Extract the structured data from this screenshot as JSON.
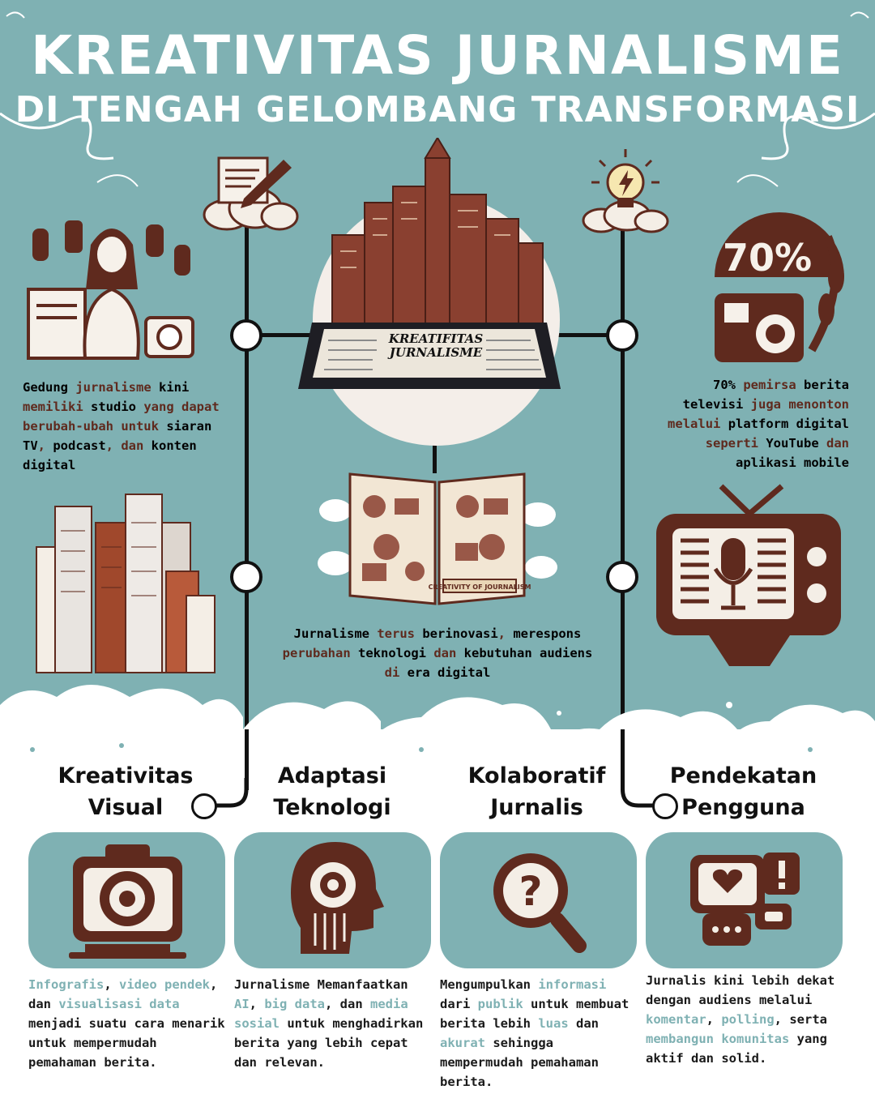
{
  "title": {
    "line1": "KREATIVITAS JURNALISME",
    "line2": "DI TENGAH GELOMBANG TRANSFORMASI"
  },
  "tablet_screen_text": {
    "line1": "KREATIFITAS",
    "line2": "JURNALISME"
  },
  "book_ribbon": "CREATIVITY OF JOURNALISM",
  "stat_badge": "70%",
  "top_left_text": [
    {
      "t": "Gedung ",
      "h": "w"
    },
    {
      "t": "jurnalisme",
      "h": "d"
    },
    {
      "t": " kini ",
      "h": "w"
    },
    {
      "t": "memiliki ",
      "h": "d"
    },
    {
      "t": "studio",
      "h": "w"
    },
    {
      "t": " yang dapat ",
      "h": "d"
    },
    {
      "t": "berubah-ubah untuk ",
      "h": "d"
    },
    {
      "t": "siaran TV",
      "h": "w"
    },
    {
      "t": ", ",
      "h": "d"
    },
    {
      "t": "podcast",
      "h": "w"
    },
    {
      "t": ", dan ",
      "h": "d"
    },
    {
      "t": "konten digital",
      "h": "w"
    }
  ],
  "top_right_text": [
    {
      "t": "70% ",
      "h": "w"
    },
    {
      "t": "pemirsa",
      "h": "d"
    },
    {
      "t": " berita televisi ",
      "h": "w"
    },
    {
      "t": "juga menonton melalui ",
      "h": "d"
    },
    {
      "t": "platform digital",
      "h": "w"
    },
    {
      "t": " seperti ",
      "h": "d"
    },
    {
      "t": "YouTube",
      "h": "w"
    },
    {
      "t": " dan ",
      "h": "d"
    },
    {
      "t": "aplikasi mobile",
      "h": "w"
    }
  ],
  "center_text": [
    {
      "t": "Jurnalisme",
      "h": "w"
    },
    {
      "t": " terus ",
      "h": "d"
    },
    {
      "t": "berinovasi",
      "h": "w"
    },
    {
      "t": ", ",
      "h": "d"
    },
    {
      "t": "merespons",
      "h": "w"
    },
    {
      "t": " perubahan ",
      "h": "d"
    },
    {
      "t": "teknologi",
      "h": "w"
    },
    {
      "t": " dan ",
      "h": "d"
    },
    {
      "t": "kebutuhan audiens",
      "h": "w"
    },
    {
      "t": " di ",
      "h": "d"
    },
    {
      "t": "era digital",
      "h": "w"
    }
  ],
  "columns": [
    {
      "heading1": "Kreativitas",
      "heading2": "Visual",
      "text": [
        {
          "t": "Infografis",
          "h": "t"
        },
        {
          "t": ", ",
          "h": "k"
        },
        {
          "t": "video pendek",
          "h": "t"
        },
        {
          "t": ", dan ",
          "h": "k"
        },
        {
          "t": "visualisasi data",
          "h": "t"
        },
        {
          "t": " menjadi suatu cara menarik untuk mempermudah pemahaman berita.",
          "h": "k"
        }
      ]
    },
    {
      "heading1": "Adaptasi",
      "heading2": "Teknologi",
      "text": [
        {
          "t": "Jurnalisme Memanfaatkan ",
          "h": "k"
        },
        {
          "t": "AI",
          "h": "t"
        },
        {
          "t": ", ",
          "h": "k"
        },
        {
          "t": "big data",
          "h": "t"
        },
        {
          "t": ", dan ",
          "h": "k"
        },
        {
          "t": "media sosial",
          "h": "t"
        },
        {
          "t": " untuk menghadirkan berita yang lebih cepat dan relevan.",
          "h": "k"
        }
      ]
    },
    {
      "heading1": "Kolaboratif",
      "heading2": "Jurnalis",
      "text": [
        {
          "t": "Mengumpulkan ",
          "h": "k"
        },
        {
          "t": "informasi",
          "h": "t"
        },
        {
          "t": " dari ",
          "h": "k"
        },
        {
          "t": "publik",
          "h": "t"
        },
        {
          "t": " untuk membuat berita lebih ",
          "h": "k"
        },
        {
          "t": "luas",
          "h": "t"
        },
        {
          "t": " dan ",
          "h": "k"
        },
        {
          "t": "akurat",
          "h": "t"
        },
        {
          "t": " sehingga mempermudah pemahaman berita.",
          "h": "k"
        }
      ]
    },
    {
      "heading1": "Pendekatan",
      "heading2": "Pengguna",
      "text": [
        {
          "t": "Jurnalis kini lebih dekat dengan audiens melalui ",
          "h": "k"
        },
        {
          "t": "komentar",
          "h": "t"
        },
        {
          "t": ", ",
          "h": "k"
        },
        {
          "t": "polling",
          "h": "t"
        },
        {
          "t": ", serta ",
          "h": "k"
        },
        {
          "t": "membangun komunitas",
          "h": "t"
        },
        {
          "t": " yang aktif dan solid.",
          "h": "k"
        }
      ]
    }
  ],
  "colors": {
    "teal": "#7fb1b3",
    "brown": "#5f2a1e",
    "white": "#ffffff",
    "ink": "#111111"
  },
  "icons": [
    "quill-scroll-icon",
    "lightbulb-icon",
    "reporter-icon",
    "stats-70-icon",
    "city-buildings-icon",
    "retro-tv-mic-icon",
    "tablet-city-icon",
    "open-book-icon",
    "camera-icon",
    "ai-head-icon",
    "search-question-icon",
    "chat-bubbles-icon"
  ]
}
